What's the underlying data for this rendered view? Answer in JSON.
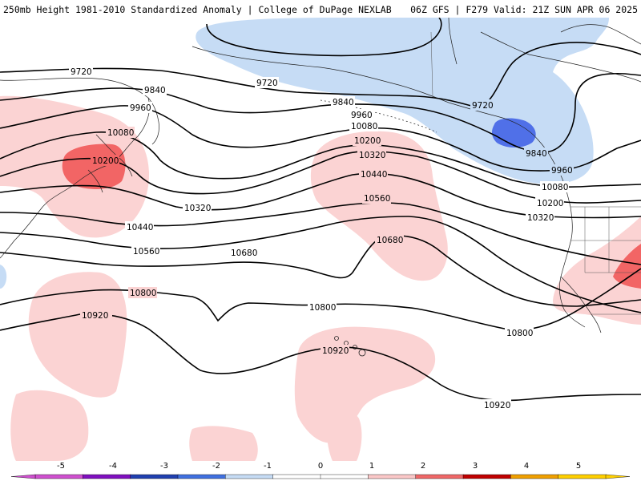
{
  "header": {
    "title": "250mb Height 1981-2010 Standardized Anomaly | College of DuPage NEXLAB",
    "run_info": "06Z GFS | F279 Valid: 21Z SUN APR 06 2025"
  },
  "map": {
    "level": "250mb",
    "contour_units": "m",
    "contour_labels": [
      "9720",
      "9720",
      "9720",
      "9840",
      "9840",
      "9840",
      "9960",
      "9960",
      "9960",
      "10080",
      "10080",
      "10080",
      "10200",
      "10200",
      "10200",
      "10320",
      "10320",
      "10320",
      "10440",
      "10440",
      "10560",
      "10560",
      "10680",
      "10680",
      "10800",
      "10800",
      "10800",
      "10920",
      "10920",
      "10920"
    ],
    "anomaly_regions": [
      {
        "region": "Gulf of Alaska / Alaska",
        "sign": "negative",
        "peak_sd": -2
      },
      {
        "region": "Northeast Asia / Japan",
        "sign": "positive",
        "peak_sd": 2
      },
      {
        "region": "Central North Pacific",
        "sign": "positive",
        "peak_sd": 1
      },
      {
        "region": "Southwest United States",
        "sign": "positive",
        "peak_sd": 2
      },
      {
        "region": "Hawaii",
        "sign": "positive",
        "peak_sd": 1
      },
      {
        "region": "Western Pacific subtropics",
        "sign": "positive",
        "peak_sd": 1
      }
    ]
  },
  "colorbar": {
    "tick_labels": [
      "-5",
      "-4",
      "-3",
      "-2",
      "-1",
      "0",
      "1",
      "2",
      "3",
      "4",
      "5"
    ],
    "colors": [
      "#d050d0",
      "#8010c0",
      "#2040b0",
      "#4070e0",
      "#c6dcf5",
      "#ffffff",
      "#ffffff",
      "#fbc8c8",
      "#f06868",
      "#c00000",
      "#f0a000",
      "#ffd000"
    ]
  },
  "colors": {
    "positive_1sd": "#fbd3d3",
    "positive_2sd": "#f26565",
    "negative_1sd": "#c6dcf5",
    "negative_2sd": "#5070e8",
    "contour": "#000000",
    "coastline": "#222222"
  }
}
